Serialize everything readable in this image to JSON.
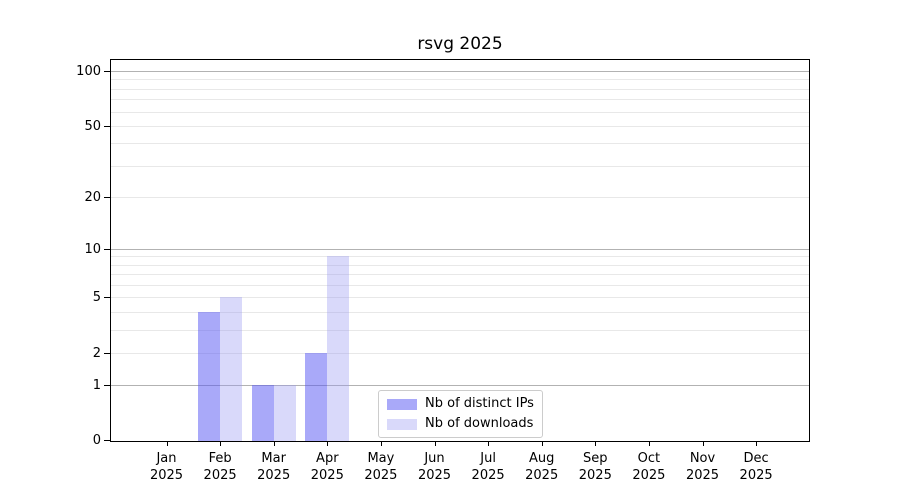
{
  "chart_data": {
    "type": "bar",
    "title": "rsvg 2025",
    "x_labels": [
      {
        "month": "Jan",
        "year": "2025"
      },
      {
        "month": "Feb",
        "year": "2025"
      },
      {
        "month": "Mar",
        "year": "2025"
      },
      {
        "month": "Apr",
        "year": "2025"
      },
      {
        "month": "May",
        "year": "2025"
      },
      {
        "month": "Jun",
        "year": "2025"
      },
      {
        "month": "Jul",
        "year": "2025"
      },
      {
        "month": "Aug",
        "year": "2025"
      },
      {
        "month": "Sep",
        "year": "2025"
      },
      {
        "month": "Oct",
        "year": "2025"
      },
      {
        "month": "Nov",
        "year": "2025"
      },
      {
        "month": "Dec",
        "year": "2025"
      }
    ],
    "series": [
      {
        "name": "Nb of distinct IPs",
        "color": "#a9a9f6",
        "fill": "rgba(84,84,244,0.50)",
        "values": [
          0,
          4,
          1,
          2,
          0,
          0,
          0,
          0,
          0,
          0,
          0,
          0
        ]
      },
      {
        "name": "Nb of downloads",
        "color": "#d9d9f9",
        "fill": "rgba(150,150,240,0.36)",
        "values": [
          0,
          5,
          1,
          9,
          0,
          0,
          0,
          0,
          0,
          0,
          0,
          0
        ]
      }
    ],
    "yscale": "log1p",
    "ylim": [
      0,
      115
    ],
    "y_ticks": [
      0,
      1,
      2,
      5,
      10,
      20,
      50,
      100
    ],
    "major_gridlines": [
      1,
      10,
      100
    ],
    "minor_gridlines": [
      2,
      3,
      4,
      5,
      6,
      7,
      8,
      9,
      20,
      30,
      40,
      50,
      60,
      70,
      80,
      90
    ],
    "legend": {
      "position": "lower-center",
      "items": [
        "Nb of distinct IPs",
        "Nb of downloads"
      ]
    },
    "colors": {
      "grid_major": "#b2b2b2",
      "grid_minor": "#e8e8e8",
      "axis": "#000000",
      "text": "#000000",
      "background": "#ffffff"
    }
  }
}
